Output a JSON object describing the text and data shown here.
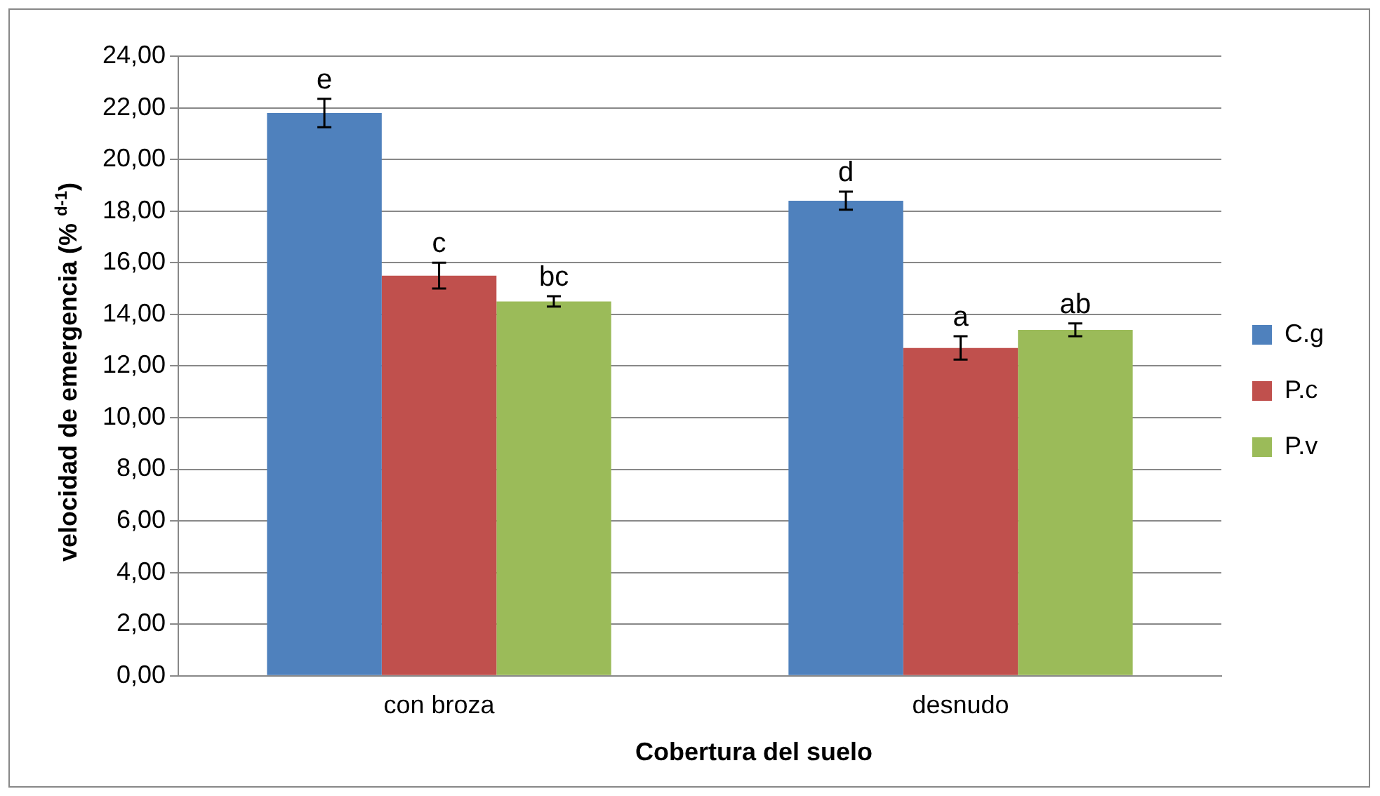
{
  "chart_data": {
    "type": "bar",
    "xlabel": "Cobertura del suelo",
    "ylabel": "velocidad de emergencia (% $^{d-1}$)",
    "categories": [
      "con broza",
      "desnudo"
    ],
    "series": [
      {
        "name": "C.g",
        "color": "#4f81bd",
        "values": [
          21.8,
          18.4
        ],
        "errors": [
          0.55,
          0.35
        ],
        "value_labels": [
          "e",
          "d"
        ]
      },
      {
        "name": "P.c",
        "color": "#c0504d",
        "values": [
          15.5,
          12.7
        ],
        "errors": [
          0.5,
          0.45
        ],
        "value_labels": [
          "c",
          "a"
        ]
      },
      {
        "name": "P.v",
        "color": "#9bbb59",
        "values": [
          14.5,
          13.4
        ],
        "errors": [
          0.2,
          0.25
        ],
        "value_labels": [
          "bc",
          "ab"
        ]
      }
    ],
    "ylim": [
      0,
      24
    ],
    "yticks": [
      {
        "value": 0,
        "label": "0,00"
      },
      {
        "value": 2,
        "label": "2,00"
      },
      {
        "value": 4,
        "label": "4,00"
      },
      {
        "value": 6,
        "label": "6,00"
      },
      {
        "value": 8,
        "label": "8,00"
      },
      {
        "value": 10,
        "label": "10,00"
      },
      {
        "value": 12,
        "label": "12,00"
      },
      {
        "value": 14,
        "label": "14,00"
      },
      {
        "value": 16,
        "label": "16,00"
      },
      {
        "value": 18,
        "label": "18,00"
      },
      {
        "value": 20,
        "label": "20,00"
      },
      {
        "value": 22,
        "label": "22,00"
      },
      {
        "value": 24,
        "label": "24,00"
      }
    ],
    "grid": "y",
    "legend": "right"
  }
}
